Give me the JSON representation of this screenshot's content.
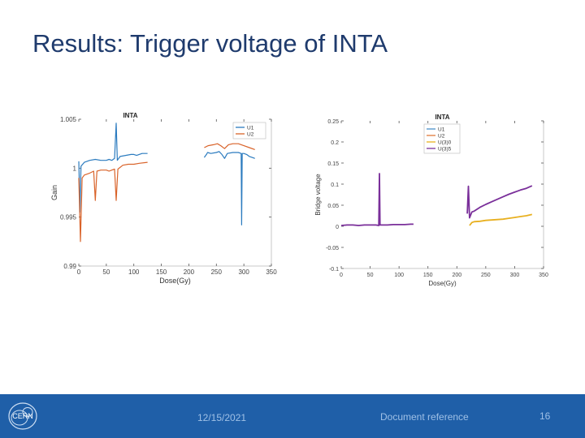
{
  "slide": {
    "title": "Results: Trigger voltage of INTA"
  },
  "footer": {
    "date": "12/15/2021",
    "reference": "Document reference",
    "page_number": "16",
    "logo_text": "CERN",
    "background_color": "#1f5fa8"
  },
  "chart_data": [
    {
      "type": "line",
      "title": "INTA",
      "xlabel": "Dose(Gy)",
      "ylabel": "Gain",
      "xlim": [
        0,
        350
      ],
      "ylim": [
        0.99,
        1.005
      ],
      "xticks": [
        0,
        50,
        100,
        150,
        200,
        250,
        300,
        350
      ],
      "yticks": [
        0.99,
        0.995,
        1,
        1.005
      ],
      "ytick_labels": [
        "0.99",
        "0.995",
        "1",
        "1.005"
      ],
      "grid": false,
      "legend": "top-right",
      "series": [
        {
          "name": "U1",
          "color": "#2b7bbf",
          "segments": [
            [
              [
                0,
                1.0007
              ],
              [
                2,
                0.9955
              ],
              [
                4,
                1.0002
              ],
              [
                10,
                1.0006
              ],
              [
                20,
                1.0008
              ],
              [
                30,
                1.0009
              ],
              [
                40,
                1.0008
              ],
              [
                50,
                1.0008
              ],
              [
                55,
                1.0009
              ],
              [
                60,
                1.0008
              ],
              [
                65,
                1.001
              ],
              [
                68,
                1.0046
              ],
              [
                70,
                1.0008
              ],
              [
                75,
                1.0012
              ],
              [
                85,
                1.0013
              ],
              [
                95,
                1.0014
              ],
              [
                100,
                1.0014
              ],
              [
                105,
                1.0013
              ],
              [
                115,
                1.0015
              ],
              [
                125,
                1.0015
              ]
            ],
            [
              [
                228,
                1.0011
              ],
              [
                232,
                1.0014
              ],
              [
                234,
                1.0016
              ],
              [
                240,
                1.0015
              ],
              [
                250,
                1.0016
              ],
              [
                255,
                1.0017
              ],
              [
                260,
                1.0014
              ],
              [
                265,
                1.001
              ],
              [
                270,
                1.0015
              ],
              [
                280,
                1.0016
              ],
              [
                290,
                1.0016
              ],
              [
                295,
                1.0015
              ],
              [
                296,
                0.9942
              ],
              [
                297,
                1.0015
              ],
              [
                300,
                1.0015
              ],
              [
                305,
                1.0014
              ],
              [
                310,
                1.0012
              ],
              [
                315,
                1.0011
              ],
              [
                320,
                1.001
              ]
            ]
          ]
        },
        {
          "name": "U2",
          "color": "#d9632a",
          "segments": [
            [
              [
                0,
                0.999
              ],
              [
                3,
                0.9925
              ],
              [
                6,
                0.999
              ],
              [
                10,
                0.9993
              ],
              [
                20,
                0.9995
              ],
              [
                27,
                0.9997
              ],
              [
                30,
                0.9967
              ],
              [
                33,
                0.9997
              ],
              [
                40,
                0.9998
              ],
              [
                50,
                0.9998
              ],
              [
                55,
                0.9997
              ],
              [
                60,
                0.9998
              ],
              [
                65,
                0.9999
              ],
              [
                68,
                0.9967
              ],
              [
                71,
                0.9999
              ],
              [
                80,
                1.0003
              ],
              [
                90,
                1.0004
              ],
              [
                100,
                1.0004
              ],
              [
                110,
                1.0005
              ],
              [
                125,
                1.0006
              ]
            ],
            [
              [
                228,
                1.0021
              ],
              [
                235,
                1.0023
              ],
              [
                245,
                1.0024
              ],
              [
                252,
                1.0025
              ],
              [
                258,
                1.0023
              ],
              [
                265,
                1.002
              ],
              [
                272,
                1.0024
              ],
              [
                280,
                1.0025
              ],
              [
                290,
                1.0025
              ],
              [
                300,
                1.0023
              ],
              [
                310,
                1.0021
              ],
              [
                320,
                1.0019
              ]
            ]
          ]
        }
      ]
    },
    {
      "type": "line",
      "title": "INTA",
      "xlabel": "Dose(Gy)",
      "ylabel": "Bridge voltage",
      "xlim": [
        0,
        350
      ],
      "ylim": [
        -0.1,
        0.25
      ],
      "xticks": [
        0,
        50,
        100,
        150,
        200,
        250,
        300,
        350
      ],
      "yticks": [
        -0.1,
        -0.05,
        0,
        0.05,
        0.1,
        0.15,
        0.2,
        0.25
      ],
      "ytick_labels": [
        "-0.1",
        "-0.05",
        "0",
        "0.05",
        "0.1",
        "0.15",
        "0.2",
        "0.25"
      ],
      "grid": false,
      "legend": "top-right",
      "series": [
        {
          "name": "U1",
          "color": "#4a90c8",
          "segments": []
        },
        {
          "name": "U2",
          "color": "#e07a3a",
          "segments": []
        },
        {
          "name": "U(3)0",
          "color": "#e8b020",
          "segments": [
            [
              [
                222,
                0.002
              ],
              [
                226,
                0.009
              ],
              [
                230,
                0.011
              ],
              [
                240,
                0.012
              ],
              [
                250,
                0.014
              ],
              [
                260,
                0.015
              ],
              [
                270,
                0.016
              ],
              [
                280,
                0.017
              ],
              [
                290,
                0.019
              ],
              [
                300,
                0.021
              ],
              [
                310,
                0.023
              ],
              [
                320,
                0.025
              ],
              [
                330,
                0.028
              ]
            ]
          ]
        },
        {
          "name": "U(3)5",
          "color": "#7a2f9a",
          "segments": [
            [
              [
                0,
                0.002
              ],
              [
                10,
                0.003
              ],
              [
                20,
                0.003
              ],
              [
                30,
                0.002
              ],
              [
                40,
                0.003
              ],
              [
                50,
                0.003
              ],
              [
                60,
                0.003
              ],
              [
                65,
                0.002
              ],
              [
                66,
                0.125
              ],
              [
                67,
                0.003
              ],
              [
                70,
                0.003
              ],
              [
                80,
                0.003
              ],
              [
                90,
                0.004
              ],
              [
                100,
                0.004
              ],
              [
                110,
                0.004
              ],
              [
                120,
                0.005
              ],
              [
                125,
                0.005
              ]
            ],
            [
              [
                218,
                0.03
              ],
              [
                220,
                0.095
              ],
              [
                222,
                0.02
              ],
              [
                226,
                0.034
              ],
              [
                230,
                0.036
              ],
              [
                240,
                0.045
              ],
              [
                250,
                0.052
              ],
              [
                260,
                0.058
              ],
              [
                270,
                0.064
              ],
              [
                280,
                0.07
              ],
              [
                290,
                0.076
              ],
              [
                300,
                0.081
              ],
              [
                310,
                0.086
              ],
              [
                320,
                0.09
              ],
              [
                330,
                0.096
              ]
            ]
          ]
        }
      ]
    }
  ]
}
